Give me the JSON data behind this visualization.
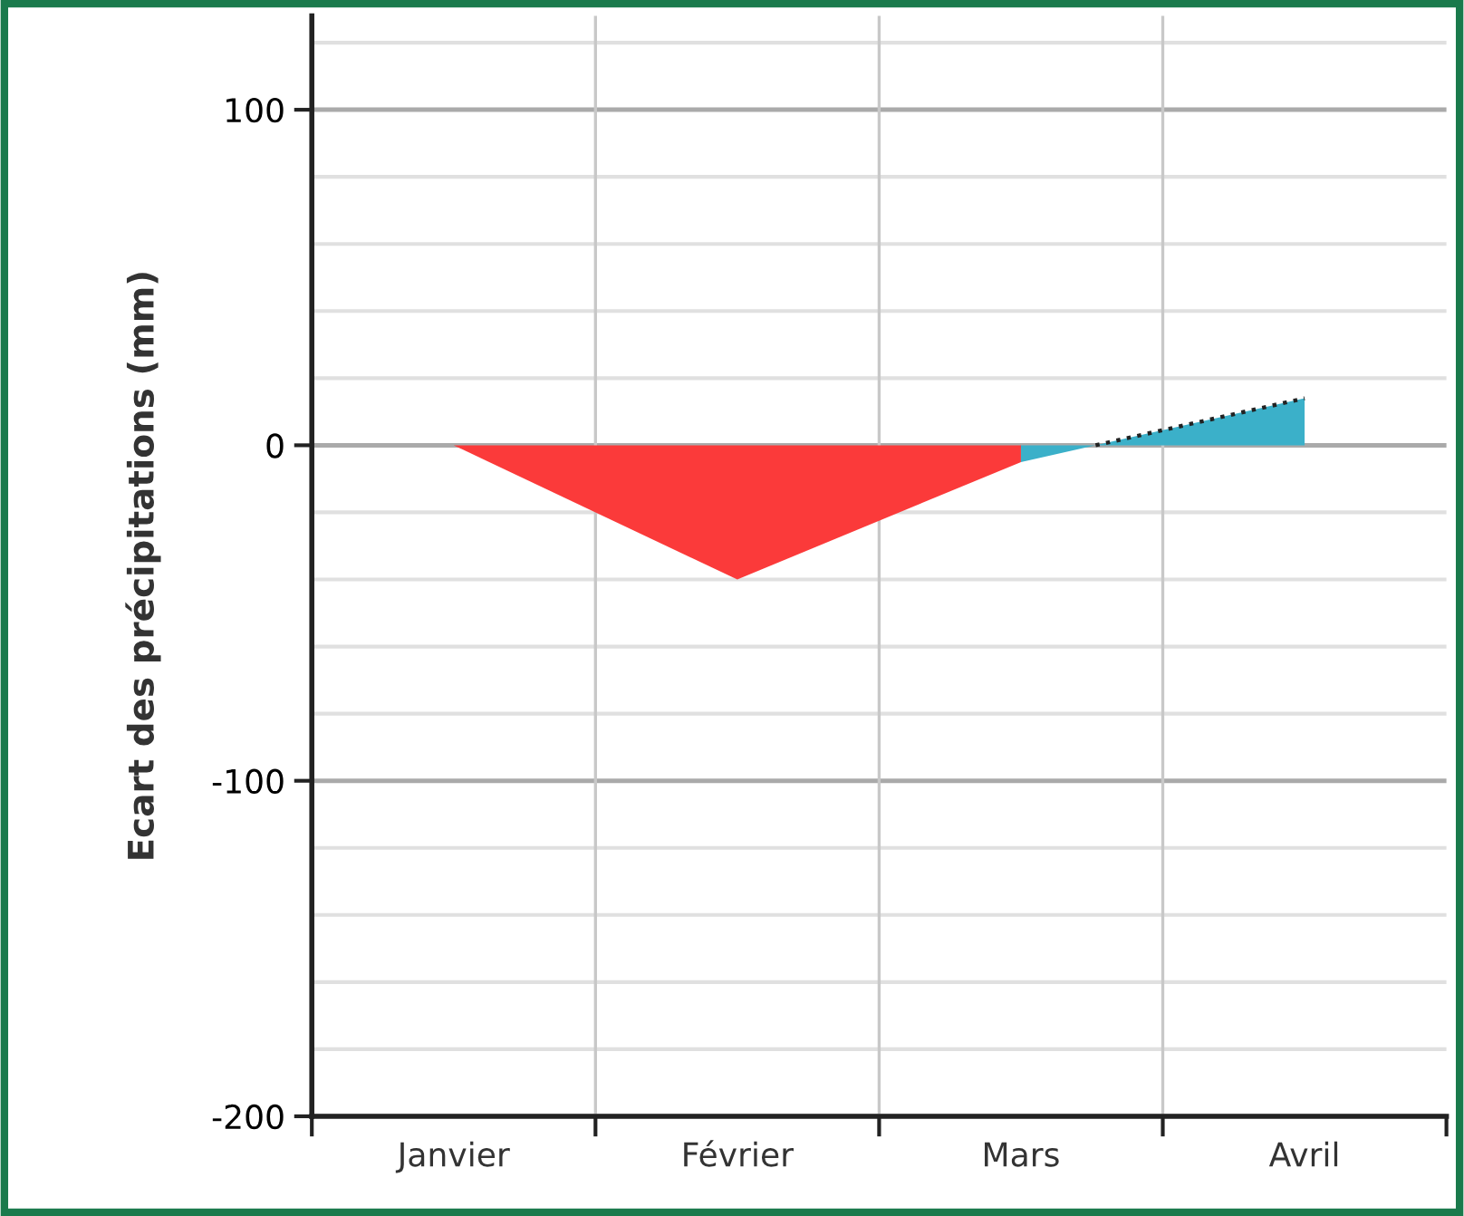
{
  "chart_data": {
    "type": "area",
    "ylabel": "Ecart des précipitations (mm)",
    "categories": [
      "Janvier",
      "Février",
      "Mars",
      "Avril"
    ],
    "series": [
      {
        "color": "#fb3a3a",
        "values": [
          0,
          -40,
          -5,
          null
        ]
      },
      {
        "color": "#3bb0c9",
        "line_style": "dotted",
        "values": [
          null,
          null,
          -5,
          14
        ]
      }
    ],
    "ylim": [
      -200,
      128
    ],
    "yticks": [
      -200,
      {
        "value": -180,
        "label": null
      },
      {
        "value": -160,
        "label": null
      },
      {
        "value": -140,
        "label": null
      },
      {
        "value": -120,
        "label": null
      },
      -100,
      {
        "value": -80,
        "label": null
      },
      {
        "value": -60,
        "label": null
      },
      {
        "value": -40,
        "label": null
      },
      {
        "value": -20,
        "label": null
      },
      0,
      {
        "value": 20,
        "label": null
      },
      {
        "value": 40,
        "label": null
      },
      {
        "value": 60,
        "label": null
      },
      {
        "value": 80,
        "label": null
      },
      100,
      {
        "value": 120,
        "label": null
      }
    ],
    "grid": true
  }
}
